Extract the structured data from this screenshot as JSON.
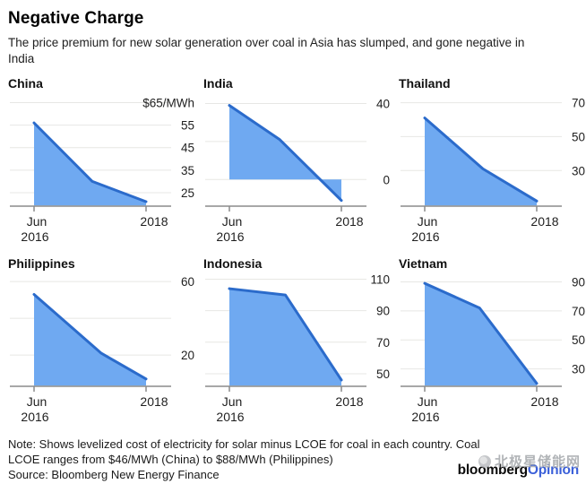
{
  "header": {
    "title": "Negative Charge",
    "subtitle_line1": "The price premium for new solar generation over coal in Asia has slumped, and gone negative in",
    "subtitle_line2": "India"
  },
  "colors": {
    "area_fill": "#6FA9F1",
    "line": "#2B6BCB",
    "gridline": "#e7e7e4",
    "axis": "#8b8b8b",
    "tick_text": "#1f1f1f",
    "opinion_blue": "#3a5fd9",
    "watermark_gray": "#a9acb0"
  },
  "icons": {
    "watermark_logo": "beijixing-star-emblem"
  },
  "chart_data": [
    {
      "type": "area",
      "title": "China",
      "x": [
        0,
        0.52,
        1
      ],
      "values": [
        56,
        30,
        21
      ],
      "ylim": [
        19,
        68
      ],
      "baseline": "bottom",
      "y_ticks": [
        {
          "value": 65,
          "label": "$65/MWh"
        },
        {
          "value": 55,
          "label": "55"
        },
        {
          "value": 45,
          "label": "45"
        },
        {
          "value": 35,
          "label": "35"
        },
        {
          "value": 25,
          "label": "25"
        }
      ],
      "x_ticks": {
        "left_line1": "Jun",
        "left_line2": "2016",
        "right": "2018"
      }
    },
    {
      "type": "area",
      "title": "India",
      "x": [
        0,
        0.45,
        1
      ],
      "values": [
        39,
        21,
        -11
      ],
      "ylim": [
        -14,
        44
      ],
      "baseline": 0,
      "y_ticks": [
        {
          "value": 40,
          "label": "40"
        },
        {
          "value": 20,
          "label": ""
        },
        {
          "value": 0,
          "label": "0"
        }
      ],
      "x_ticks": {
        "left_line1": "Jun",
        "left_line2": "2016",
        "right": "2018"
      }
    },
    {
      "type": "area",
      "title": "Thailand",
      "x": [
        0,
        0.52,
        1
      ],
      "values": [
        61,
        31,
        12
      ],
      "ylim": [
        9,
        74
      ],
      "baseline": "bottom",
      "y_ticks": [
        {
          "value": 70,
          "label": "70"
        },
        {
          "value": 50,
          "label": "50"
        },
        {
          "value": 30,
          "label": "30"
        }
      ],
      "x_ticks": {
        "left_line1": "Jun",
        "left_line2": "2016",
        "right": "2018"
      }
    },
    {
      "type": "area",
      "title": "Philippines",
      "x": [
        0,
        0.6,
        1
      ],
      "values": [
        53,
        21,
        7
      ],
      "ylim": [
        3,
        63
      ],
      "baseline": "bottom",
      "y_ticks": [
        {
          "value": 60,
          "label": "60"
        },
        {
          "value": 40,
          "label": ""
        },
        {
          "value": 20,
          "label": "20"
        }
      ],
      "x_ticks": {
        "left_line1": "Jun",
        "left_line2": "2016",
        "right": "2018"
      }
    },
    {
      "type": "area",
      "title": "Indonesia",
      "x": [
        0,
        0.5,
        1
      ],
      "values": [
        104,
        100,
        46
      ],
      "ylim": [
        42,
        112
      ],
      "baseline": "bottom",
      "y_ticks": [
        {
          "value": 110,
          "label": "110"
        },
        {
          "value": 90,
          "label": "90"
        },
        {
          "value": 70,
          "label": "70"
        },
        {
          "value": 50,
          "label": "50"
        }
      ],
      "x_ticks": {
        "left_line1": "Jun",
        "left_line2": "2016",
        "right": "2018"
      }
    },
    {
      "type": "area",
      "title": "Vietnam",
      "x": [
        0,
        0.49,
        1
      ],
      "values": [
        89,
        72,
        20
      ],
      "ylim": [
        18,
        94
      ],
      "baseline": "bottom",
      "y_ticks": [
        {
          "value": 90,
          "label": "90"
        },
        {
          "value": 70,
          "label": "70"
        },
        {
          "value": 50,
          "label": "50"
        },
        {
          "value": 30,
          "label": "30"
        }
      ],
      "x_ticks": {
        "left_line1": "Jun",
        "left_line2": "2016",
        "right": "2018"
      }
    }
  ],
  "footer": {
    "note_line1": "Note: Shows levelized cost of electricity for solar minus LCOE for coal in each country. Coal",
    "note_line2": "LCOE ranges from $46/MWh (China) to $88/MWh (Philippines)",
    "source": "Source: Bloomberg New Energy Finance"
  },
  "brand": {
    "bloomberg": "bloomberg",
    "opinion": "Opinion"
  },
  "watermark": {
    "text": "北极星储能网"
  }
}
